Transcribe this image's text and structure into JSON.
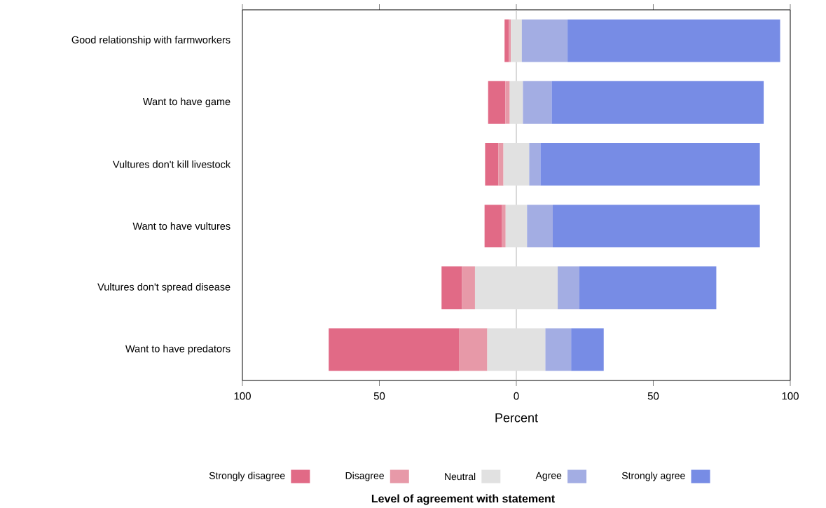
{
  "chart_data": {
    "type": "bar",
    "orientation": "horizontal",
    "xlabel": "Percent",
    "legend_title": "Level of agreement with statement",
    "categories": [
      "Good relationship with farmworkers",
      "Want to have game",
      "Vultures don't kill livestock",
      "Want to have vultures",
      "Vultures don't spread disease",
      "Want to have predators"
    ],
    "series": [
      {
        "name": "Strongly disagree",
        "color": "#e16a86",
        "base": [
          -4.3,
          -10.3,
          -11.4,
          -11.6,
          -27.3,
          -68.5
        ],
        "values": [
          1.6,
          6.3,
          4.8,
          6.4,
          7.5,
          47.7
        ]
      },
      {
        "name": "Disagree",
        "color": "#e799a8",
        "base": [
          -2.7,
          -4.0,
          -6.6,
          -5.2,
          -19.8,
          -20.8
        ],
        "values": [
          0.7,
          1.6,
          1.9,
          1.3,
          4.7,
          10.2
        ]
      },
      {
        "name": "Neutral",
        "color": "#e1e1e1",
        "base": [
          -2.0,
          -2.4,
          -4.7,
          -3.9,
          -15.1,
          -10.6
        ],
        "values": [
          4.0,
          4.8,
          9.4,
          7.8,
          30.2,
          21.2
        ]
      },
      {
        "name": "Agree",
        "color": "#a3ade3",
        "base": [
          2.0,
          2.4,
          4.7,
          3.9,
          15.1,
          10.6
        ],
        "values": [
          16.7,
          10.5,
          4.1,
          9.4,
          7.9,
          9.4
        ]
      },
      {
        "name": "Strongly agree",
        "color": "#778ce5",
        "base": [
          18.7,
          12.9,
          8.8,
          13.3,
          23.0,
          20.0
        ],
        "values": [
          77.6,
          77.4,
          80.1,
          75.6,
          50.0,
          11.9
        ]
      }
    ],
    "xlim": [
      -100,
      100
    ],
    "xticks": [
      {
        "value": -100,
        "label": "100"
      },
      {
        "value": -50,
        "label": "50"
      },
      0,
      50,
      100
    ],
    "ref_lines": [
      {
        "axis": "x",
        "value": 0,
        "color": "#bfbfbf"
      }
    ],
    "grid": false,
    "legend": "bottom"
  }
}
